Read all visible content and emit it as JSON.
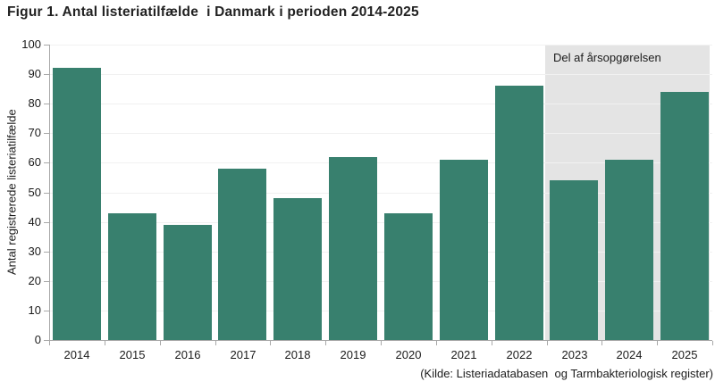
{
  "chart_data": {
    "type": "bar",
    "title": "Figur 1. Antal listeriatilfælde  i Danmark i perioden 2014-2025",
    "categories": [
      "2014",
      "2015",
      "2016",
      "2017",
      "2018",
      "2019",
      "2020",
      "2021",
      "2022",
      "2023",
      "2024",
      "2025"
    ],
    "values": [
      92,
      43,
      39,
      58,
      48,
      62,
      43,
      61,
      86,
      54,
      61,
      84
    ],
    "xlabel": "",
    "ylabel": "Antal registrerede listeriatilfælde",
    "ylim": [
      0,
      100
    ],
    "ytick_step": 10,
    "grid": true,
    "legend": "none",
    "annotation": "Del af årsopgørelsen",
    "annotation_span": [
      "2023",
      "2025"
    ],
    "source": "(Kilde: Listeriadatabasen  og Tarmbakteriologisk register)",
    "colors": {
      "bar": "#38806e",
      "highlight_bg": "#e4e4e4",
      "gridline": "#f1f1f1",
      "axis": "#a8a8a8",
      "text": "#1b1b1b",
      "title_text": "#212121"
    }
  }
}
